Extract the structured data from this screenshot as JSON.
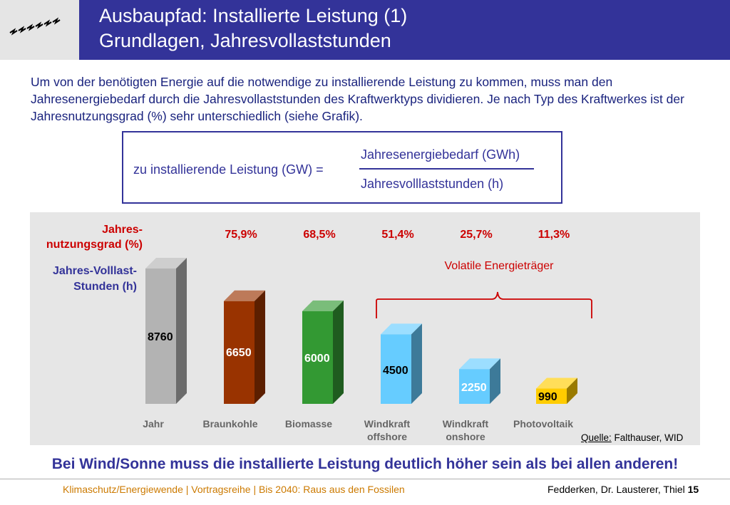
{
  "header": {
    "title_line1": "Ausbaupfad: Installierte Leistung (1)",
    "title_line2": "Grundlagen, Jahresvollaststunden",
    "logo_icon": "small-arrows-logo"
  },
  "intro_text": "Um von der benötigten Energie auf die notwendige zu installierende Leistung zu kommen, muss man den Jahresenergiebedarf durch die Jahresvollaststunden des Kraftwerktyps dividieren. Je nach Typ des Kraftwerkes ist der Jahresnutzungsgrad (%) sehr unterschiedlich (siehe Grafik).",
  "formula": {
    "lhs": "zu installierende Leistung (GW) =",
    "numerator": "Jahresenergiebedarf (GWh)",
    "denominator": "Jahresvolllaststunden (h)"
  },
  "chart_data": {
    "type": "bar",
    "categories": [
      "Jahr",
      "Braunkohle",
      "Biomasse",
      "Windkraft offshore",
      "Windkraft onshore",
      "Photovoltaik"
    ],
    "category_lines": [
      [
        "Jahr"
      ],
      [
        "Braunkohle"
      ],
      [
        "Biomasse"
      ],
      [
        "Windkraft",
        "offshore"
      ],
      [
        "Windkraft",
        "onshore"
      ],
      [
        "Photovoltaik"
      ]
    ],
    "values": [
      8760,
      6650,
      6000,
      4500,
      2250,
      990
    ],
    "value_labels": [
      "8760",
      "6650",
      "6000",
      "4500",
      "2250",
      "990"
    ],
    "percent_labels": [
      "",
      "75,9%",
      "68,5%",
      "51,4%",
      "25,7%",
      "11,3%"
    ],
    "colors": [
      "#b3b3b3",
      "#993300",
      "#339933",
      "#66ccff",
      "#66ccff",
      "#ffcc00"
    ],
    "ylim": [
      0,
      8760
    ],
    "row_label_1": [
      "Jahres-",
      "nutzungsgrad (%)"
    ],
    "row_label_2": [
      "Jahres-Volllast-",
      "Stunden (h)"
    ],
    "bracket_label": "Volatile Energieträger"
  },
  "source": {
    "prefix": "Quelle:",
    "text": " Falthauser, WID"
  },
  "conclusion": "Bei Wind/Sonne muss die installierte Leistung deutlich höher sein als bei allen anderen!",
  "footer": {
    "left": "Klimaschutz/Energiewende | Vortragsreihe | Bis 2040: Raus aus den Fossilen",
    "right_text": "Fedderken, Dr. Lausterer, Thiel ",
    "page_number": "15"
  }
}
